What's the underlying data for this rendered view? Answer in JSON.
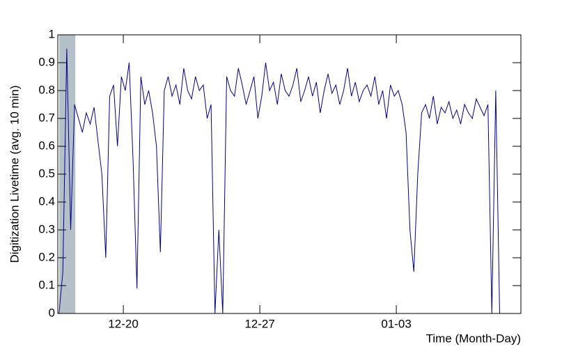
{
  "chart_data": {
    "type": "line",
    "x_label": "Time (Month-Day)",
    "y_label": "Digitization Livetime (avg. 10 min)",
    "x": [
      16.7,
      16.9,
      17.1,
      17.3,
      17.5,
      17.7,
      17.9,
      18.1,
      18.3,
      18.5,
      18.7,
      18.9,
      19.1,
      19.3,
      19.5,
      19.7,
      19.9,
      20.1,
      20.3,
      20.5,
      20.7,
      20.9,
      21.1,
      21.3,
      21.5,
      21.7,
      21.9,
      22.1,
      22.3,
      22.5,
      22.7,
      22.9,
      23.1,
      23.3,
      23.5,
      23.7,
      23.9,
      24.1,
      24.3,
      24.5,
      24.7,
      24.9,
      25.1,
      25.3,
      25.5,
      25.7,
      25.9,
      26.1,
      26.3,
      26.5,
      26.7,
      26.9,
      27.1,
      27.3,
      27.5,
      27.7,
      27.9,
      28.1,
      28.3,
      28.5,
      28.7,
      28.9,
      29.1,
      29.3,
      29.5,
      29.7,
      29.9,
      30.1,
      30.3,
      30.5,
      30.7,
      30.9,
      31.1,
      31.3,
      31.5,
      31.7,
      31.9,
      32.1,
      32.3,
      32.5,
      32.7,
      32.9,
      33.1,
      33.3,
      33.5,
      33.7,
      33.9,
      34.1,
      34.3,
      34.5,
      34.7,
      34.9,
      35.1,
      35.3,
      35.5,
      35.7,
      35.9,
      36.1,
      36.3,
      36.5,
      36.7,
      36.9,
      37.1,
      37.3,
      37.5,
      37.7,
      37.9,
      38.1,
      38.3,
      38.5,
      38.7,
      38.9,
      39.1,
      39.3
    ],
    "series": [
      {
        "color": "#00008b",
        "values": [
          0,
          0.15,
          0.95,
          0.3,
          0.75,
          0.7,
          0.65,
          0.72,
          0.68,
          0.74,
          0.62,
          0.5,
          0.2,
          0.78,
          0.82,
          0.6,
          0.85,
          0.8,
          0.9,
          0.55,
          0.09,
          0.85,
          0.75,
          0.8,
          0.72,
          0.6,
          0.22,
          0.8,
          0.85,
          0.78,
          0.82,
          0.75,
          0.88,
          0.8,
          0.77,
          0.85,
          0.8,
          0.82,
          0.7,
          0.75,
          0,
          0.3,
          0,
          0.85,
          0.8,
          0.78,
          0.88,
          0.82,
          0.75,
          0.8,
          0.85,
          0.7,
          0.78,
          0.9,
          0.8,
          0.83,
          0.75,
          0.86,
          0.8,
          0.78,
          0.82,
          0.88,
          0.76,
          0.8,
          0.85,
          0.78,
          0.83,
          0.72,
          0.8,
          0.86,
          0.79,
          0.82,
          0.75,
          0.8,
          0.88,
          0.78,
          0.83,
          0.76,
          0.8,
          0.82,
          0.78,
          0.85,
          0.75,
          0.8,
          0.7,
          0.82,
          0.78,
          0.8,
          0.75,
          0.65,
          0.3,
          0.15,
          0.5,
          0.72,
          0.75,
          0.7,
          0.78,
          0.68,
          0.74,
          0.72,
          0.76,
          0.7,
          0.73,
          0.68,
          0.75,
          0.72,
          0.7,
          0.77,
          0.74,
          0.71,
          0.75,
          0,
          0.8,
          0
        ]
      }
    ],
    "shaded_region": [
      16.71,
      17.54
    ],
    "shade_color": "#b4c0c8",
    "xlim": [
      16.64,
      40.39
    ],
    "xticks": [
      {
        "value": 20,
        "label": "12-20"
      },
      {
        "value": 27,
        "label": "12-27"
      },
      {
        "value": 34,
        "label": "01-03"
      }
    ],
    "ylim": [
      0,
      1
    ],
    "yticks": [
      0,
      0.1,
      0.2,
      0.3,
      0.4,
      0.5,
      0.6,
      0.7,
      0.8,
      0.9,
      1
    ]
  }
}
